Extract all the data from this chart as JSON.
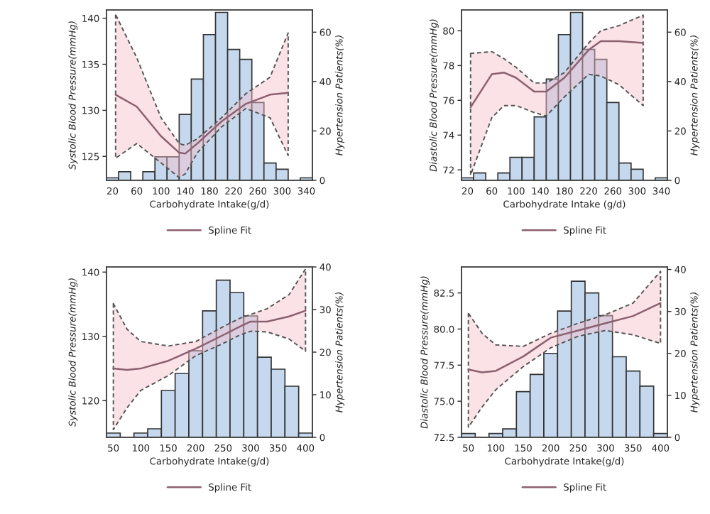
{
  "chart_data": [
    {
      "type": "histogram",
      "xlabel": "Carbohydrate Intake(g/d)",
      "ylabel": "Systolic Blood Pressure(mmHg)",
      "y2label": "Hypertension Patients(%)",
      "legend": "bottom",
      "xlim": [
        10,
        350
      ],
      "xticks": [
        20,
        60,
        100,
        140,
        180,
        220,
        260,
        300,
        340
      ],
      "ylim": [
        122.4,
        140.9
      ],
      "yticks": [
        125,
        130,
        135,
        140
      ],
      "y2lim": [
        0,
        69
      ],
      "y2ticks": [
        0,
        20,
        40,
        60
      ],
      "series": [
        {
          "axis": "y2",
          "color": "#c5d8ee",
          "bins": [
            10,
            30,
            50,
            70,
            90,
            110,
            130,
            150,
            170,
            190,
            210,
            230,
            250,
            270,
            290,
            310,
            330,
            350
          ],
          "values": [
            1,
            3.5,
            0,
            3.5,
            9.5,
            9.5,
            26.7,
            41,
            59,
            68,
            53,
            49,
            31.5,
            7,
            4.5,
            0,
            1
          ]
        },
        {
          "type": "line",
          "name": "Spline Fit",
          "color": "#8c6070",
          "x": [
            25,
            60,
            100,
            130,
            140,
            160,
            200,
            240,
            280,
            310
          ],
          "values": [
            131.7,
            130.4,
            127.2,
            125.4,
            125.3,
            126.4,
            128.8,
            130.7,
            131.7,
            131.9
          ],
          "lower": [
            124.8,
            126.4,
            124.3,
            122.7,
            123.1,
            125.4,
            128.2,
            130.2,
            129.2,
            125.1
          ],
          "upper": [
            140.4,
            135.7,
            129.2,
            126.4,
            126.2,
            126.9,
            129.2,
            131.8,
            133.6,
            138.4
          ]
        }
      ]
    },
    {
      "type": "histogram",
      "xlabel": "Carbohydrate Intake (g/d)",
      "ylabel": "Diastolic Blood Pressure(mmHg)",
      "y2label": "Hypertension Patients(%)",
      "legend": "bottom",
      "xlim": [
        10,
        350
      ],
      "xticks": [
        20,
        60,
        100,
        140,
        180,
        220,
        260,
        300,
        340
      ],
      "ylim": [
        71.4,
        81.2
      ],
      "yticks": [
        72,
        74,
        76,
        78,
        80
      ],
      "y2lim": [
        0,
        69
      ],
      "y2ticks": [
        0,
        20,
        40,
        60
      ],
      "series": [
        {
          "axis": "y2",
          "color": "#c5d8ee",
          "bins": [
            10,
            30,
            50,
            70,
            90,
            110,
            130,
            150,
            170,
            190,
            210,
            230,
            250,
            270,
            290,
            310,
            330,
            350
          ],
          "values": [
            1,
            3,
            0,
            3,
            9.3,
            9.3,
            25.7,
            41,
            59,
            68,
            53,
            49,
            31.5,
            7,
            4.5,
            0,
            1
          ]
        },
        {
          "type": "line",
          "name": "Spline Fit",
          "color": "#8c6070",
          "x": [
            25,
            60,
            80,
            100,
            130,
            150,
            180,
            220,
            240,
            270,
            310
          ],
          "values": [
            75.6,
            77.5,
            77.6,
            77.3,
            76.5,
            76.5,
            77.3,
            78.9,
            79.4,
            79.4,
            79.3
          ],
          "lower": [
            71.7,
            75.0,
            75.7,
            75.7,
            75.3,
            75.1,
            76.2,
            77.5,
            77.4,
            76.9,
            75.7
          ],
          "upper": [
            78.7,
            78.8,
            78.4,
            77.9,
            77.0,
            77.0,
            77.6,
            79.3,
            80.0,
            80.3,
            80.9
          ]
        }
      ]
    },
    {
      "type": "histogram",
      "xlabel": "Carbohydrate Intake(g/d)",
      "ylabel": "Systolic Blood Pressure(mmHg)",
      "y2label": "Hypertension Patients(%)",
      "legend": "bottom",
      "xlim": [
        37.5,
        412.5
      ],
      "xticks": [
        50,
        100,
        150,
        200,
        250,
        300,
        350,
        400
      ],
      "ylim": [
        114.3,
        140.8
      ],
      "yticks": [
        120,
        130,
        140
      ],
      "y2lim": [
        0,
        40
      ],
      "y2ticks": [
        0,
        10,
        20,
        30,
        40
      ],
      "series": [
        {
          "axis": "y2",
          "color": "#c5d8ee",
          "bins": [
            37.5,
            62.5,
            87.5,
            112.5,
            137.5,
            162.5,
            187.5,
            212.5,
            237.5,
            262.5,
            287.5,
            312.5,
            337.5,
            362.5,
            387.5,
            412.5
          ],
          "values": [
            1,
            0,
            1,
            2,
            11,
            15,
            20.3,
            29.7,
            36.9,
            34,
            28.5,
            18.8,
            16,
            12,
            1
          ]
        },
        {
          "type": "line",
          "name": "Spline Fit",
          "color": "#8c6070",
          "x": [
            50,
            75,
            100,
            150,
            200,
            250,
            280,
            300,
            330,
            370,
            400
          ],
          "values": [
            125.0,
            124.8,
            125.0,
            126.2,
            128.1,
            130.2,
            131.5,
            132.3,
            132.3,
            133.1,
            134.0
          ],
          "lower": [
            115.5,
            118.9,
            121.6,
            123.9,
            127.0,
            128.9,
            130.2,
            130.8,
            130.7,
            129.6,
            127.7
          ],
          "upper": [
            135.1,
            131.1,
            129.2,
            128.5,
            129.2,
            131.5,
            132.8,
            133.4,
            134.3,
            136.5,
            140.5
          ]
        }
      ]
    },
    {
      "type": "histogram",
      "xlabel": "Carbohydrate Intake(g/d)",
      "ylabel": "Diastolic Blood Pressure(mmHg)",
      "y2label": "Hypertension Patients(%)",
      "legend": "bottom",
      "xlim": [
        37.5,
        412.5
      ],
      "xticks": [
        50,
        100,
        150,
        200,
        250,
        300,
        350,
        400
      ],
      "ylim": [
        72.5,
        84.3
      ],
      "yticks": [
        {
          "value": 72.5,
          "label": "72.5"
        },
        {
          "value": 75,
          "label": "75.0"
        },
        {
          "value": 77.5,
          "label": "77.5"
        },
        {
          "value": 80,
          "label": "80.0"
        },
        {
          "value": 82.5,
          "label": "82.5"
        }
      ],
      "y2lim": [
        0,
        40.6
      ],
      "y2ticks": [
        0,
        10,
        20,
        30,
        40
      ],
      "series": [
        {
          "axis": "y2",
          "color": "#c5d8ee",
          "bins": [
            37.5,
            62.5,
            87.5,
            112.5,
            137.5,
            162.5,
            187.5,
            212.5,
            237.5,
            262.5,
            287.5,
            312.5,
            337.5,
            362.5,
            387.5,
            412.5
          ],
          "values": [
            0.9,
            0,
            0.9,
            2,
            10.9,
            15,
            20,
            30.1,
            37.2,
            34.4,
            29,
            19.2,
            15.8,
            12.2,
            0.9
          ]
        },
        {
          "type": "line",
          "name": "Spline Fit",
          "color": "#8c6070",
          "x": [
            50,
            75,
            100,
            150,
            200,
            250,
            300,
            350,
            400
          ],
          "values": [
            77.2,
            77.0,
            77.1,
            78.1,
            79.4,
            79.9,
            80.4,
            80.9,
            81.8
          ],
          "lower": [
            73.2,
            74.6,
            75.8,
            77.4,
            78.7,
            79.5,
            79.9,
            79.6,
            79.0
          ],
          "upper": [
            81.1,
            79.7,
            78.9,
            78.8,
            79.7,
            80.4,
            81.0,
            81.8,
            84.0
          ]
        }
      ]
    }
  ]
}
